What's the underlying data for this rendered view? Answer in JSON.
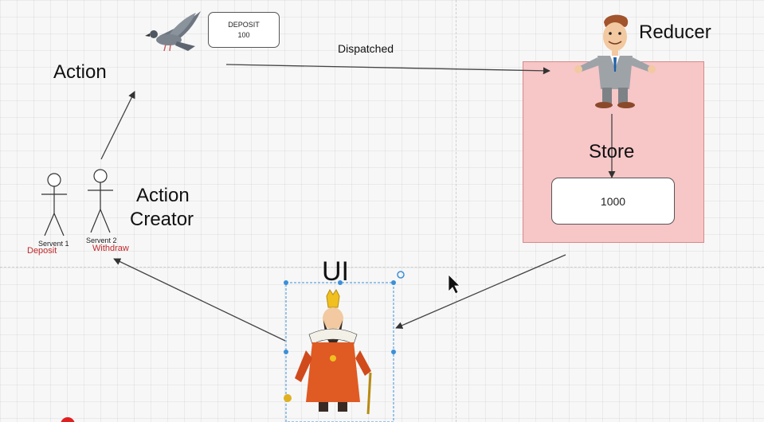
{
  "labels": {
    "action": "Action",
    "action_creator_line1": "Action",
    "action_creator_line2": "Creator",
    "reducer": "Reducer",
    "store": "Store",
    "ui": "UI",
    "dispatched": "Dispatched"
  },
  "deposit_message": {
    "type": "DEPOSIT",
    "amount": "100"
  },
  "store_value": "1000",
  "actors": [
    {
      "name": "Servent 1",
      "action": "Deposit"
    },
    {
      "name": "Servent 2",
      "action": "Withdraw"
    }
  ],
  "colors": {
    "store_fill": "#f7c6c7",
    "store_border": "#d68a8c",
    "selection": "#3b8fd8",
    "annotation_red": "#c0282b"
  },
  "icons": [
    "pigeon-icon",
    "businessman-icon",
    "king-icon",
    "stick-figure-icon",
    "mouse-cursor-icon"
  ]
}
